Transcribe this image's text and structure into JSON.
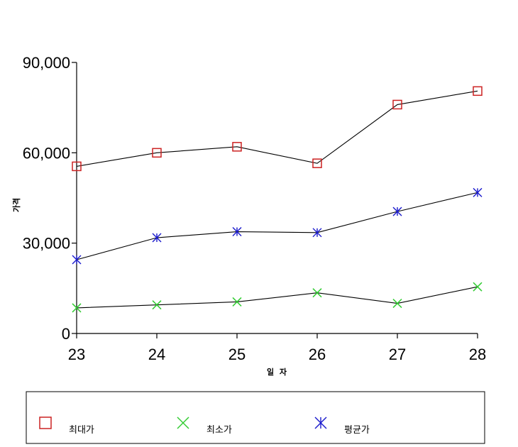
{
  "chart_data": {
    "type": "line",
    "title": "",
    "xlabel": "일  자",
    "ylabel": "가격",
    "categories": [
      "23",
      "24",
      "25",
      "26",
      "27",
      "28"
    ],
    "ylim": [
      0,
      90000
    ],
    "yticks": [
      "0",
      "30,000",
      "60,000",
      "90,000"
    ],
    "ytick_values": [
      0,
      30000,
      60000,
      90000
    ],
    "grid": false,
    "legend_position": "bottom",
    "series": [
      {
        "name": "최대가",
        "color": "#cc2222",
        "marker": "square",
        "values": [
          55500,
          60000,
          62000,
          56500,
          76000,
          80500
        ]
      },
      {
        "name": "최소가",
        "color": "#33cc33",
        "marker": "x",
        "values": [
          8500,
          9500,
          10500,
          13500,
          10000,
          15500
        ]
      },
      {
        "name": "평균가",
        "color": "#1a1acc",
        "marker": "asterisk",
        "values": [
          24500,
          31800,
          33800,
          33500,
          40500,
          46800
        ]
      }
    ]
  }
}
